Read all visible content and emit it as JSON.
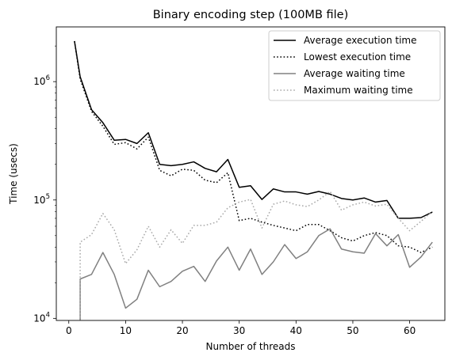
{
  "chart_data": {
    "type": "line",
    "title": "Binary encoding step (100MB file)",
    "xlabel": "Number of threads",
    "ylabel": "Time (usecs)",
    "xlim": [
      -2.2,
      66.2
    ],
    "ylim": [
      9600,
      2900000
    ],
    "yscale": "log",
    "grid": false,
    "legend_position": "top-right",
    "x_ticks": [
      0,
      10,
      20,
      30,
      40,
      50,
      60
    ],
    "y_ticks": [
      {
        "value": 10000,
        "base": "10",
        "exp": "4"
      },
      {
        "value": 100000,
        "base": "10",
        "exp": "5"
      },
      {
        "value": 1000000,
        "base": "10",
        "exp": "6"
      }
    ],
    "x": [
      1,
      2,
      4,
      6,
      8,
      10,
      12,
      14,
      16,
      18,
      20,
      22,
      24,
      26,
      28,
      30,
      32,
      34,
      36,
      38,
      40,
      42,
      44,
      46,
      48,
      50,
      52,
      54,
      56,
      58,
      60,
      62,
      64
    ],
    "series": [
      {
        "name": "Average execution time",
        "color": "#000000",
        "style": "solid",
        "values": [
          2200000,
          1100000,
          580000,
          450000,
          320000,
          325000,
          300000,
          370000,
          200000,
          195000,
          200000,
          210000,
          185000,
          173000,
          220000,
          128000,
          132000,
          101000,
          124000,
          117000,
          117000,
          112000,
          118000,
          112000,
          103000,
          100000,
          104000,
          96000,
          99000,
          70000,
          70000,
          71000,
          79000
        ]
      },
      {
        "name": "Lowest execution time",
        "color": "#000000",
        "style": "dotted",
        "values": [
          2200000,
          1050000,
          560000,
          420000,
          295000,
          305000,
          270000,
          340000,
          178000,
          160000,
          182000,
          178000,
          147000,
          140000,
          170000,
          67000,
          70000,
          65000,
          61000,
          58000,
          55000,
          62000,
          62000,
          55000,
          48000,
          45000,
          50000,
          53000,
          50000,
          41000,
          40000,
          36000,
          40000
        ]
      },
      {
        "name": "Average waiting time",
        "color": "#808080",
        "style": "solid",
        "values": [
          null,
          21500,
          23500,
          36000,
          23500,
          12200,
          14500,
          25500,
          18500,
          20500,
          25000,
          27500,
          20500,
          30500,
          40000,
          25500,
          38500,
          23500,
          30000,
          42000,
          32000,
          36500,
          50000,
          57000,
          38500,
          36500,
          35500,
          52000,
          41000,
          51000,
          27000,
          33000,
          44000
        ]
      },
      {
        "name": "Maximum waiting time",
        "color": "#a9a9a9",
        "style": "dotted",
        "values": [
          null,
          44000,
          51000,
          77000,
          56000,
          29000,
          38000,
          60000,
          40000,
          56000,
          43000,
          61000,
          61000,
          65000,
          86000,
          96000,
          101000,
          58000,
          92000,
          98000,
          91000,
          88000,
          100000,
          118000,
          82000,
          91000,
          96000,
          89000,
          92000,
          70000,
          55000,
          66000,
          80000
        ]
      }
    ]
  }
}
